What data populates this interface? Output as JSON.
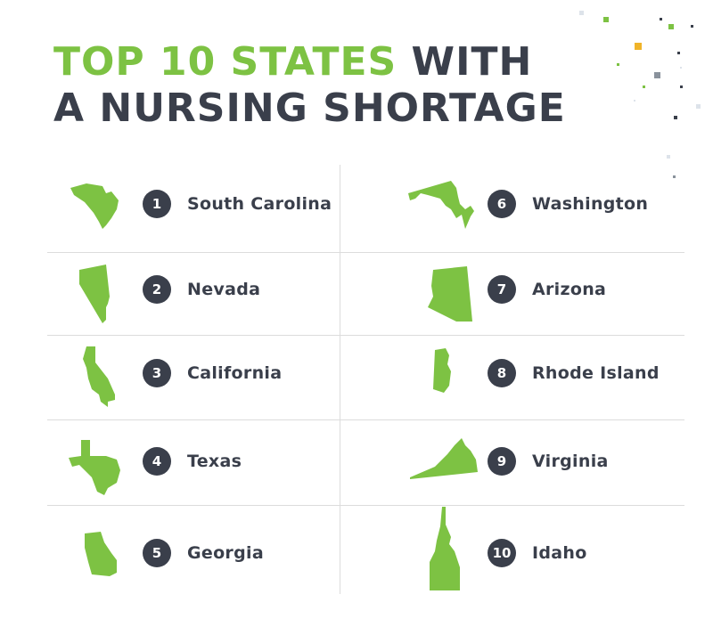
{
  "title": {
    "highlight": "TOP 10 STATES",
    "rest_line1": " WITH",
    "line2": "A NURSING SHORTAGE"
  },
  "colors": {
    "accent": "#7dc243",
    "dark": "#3a3f4b",
    "divider": "#dcdcdc"
  },
  "states": [
    {
      "rank": "1",
      "name": "South Carolina",
      "icon": "south-carolina-icon"
    },
    {
      "rank": "2",
      "name": "Nevada",
      "icon": "nevada-icon"
    },
    {
      "rank": "3",
      "name": "California",
      "icon": "california-icon"
    },
    {
      "rank": "4",
      "name": "Texas",
      "icon": "texas-icon"
    },
    {
      "rank": "5",
      "name": "Georgia",
      "icon": "georgia-icon"
    },
    {
      "rank": "6",
      "name": "Washington",
      "icon": "maryland-dc-icon"
    },
    {
      "rank": "7",
      "name": "Arizona",
      "icon": "arizona-icon"
    },
    {
      "rank": "8",
      "name": "Rhode Island",
      "icon": "rhode-island-icon"
    },
    {
      "rank": "9",
      "name": "Virginia",
      "icon": "virginia-icon"
    },
    {
      "rank": "10",
      "name": "Idaho",
      "icon": "idaho-icon"
    }
  ]
}
